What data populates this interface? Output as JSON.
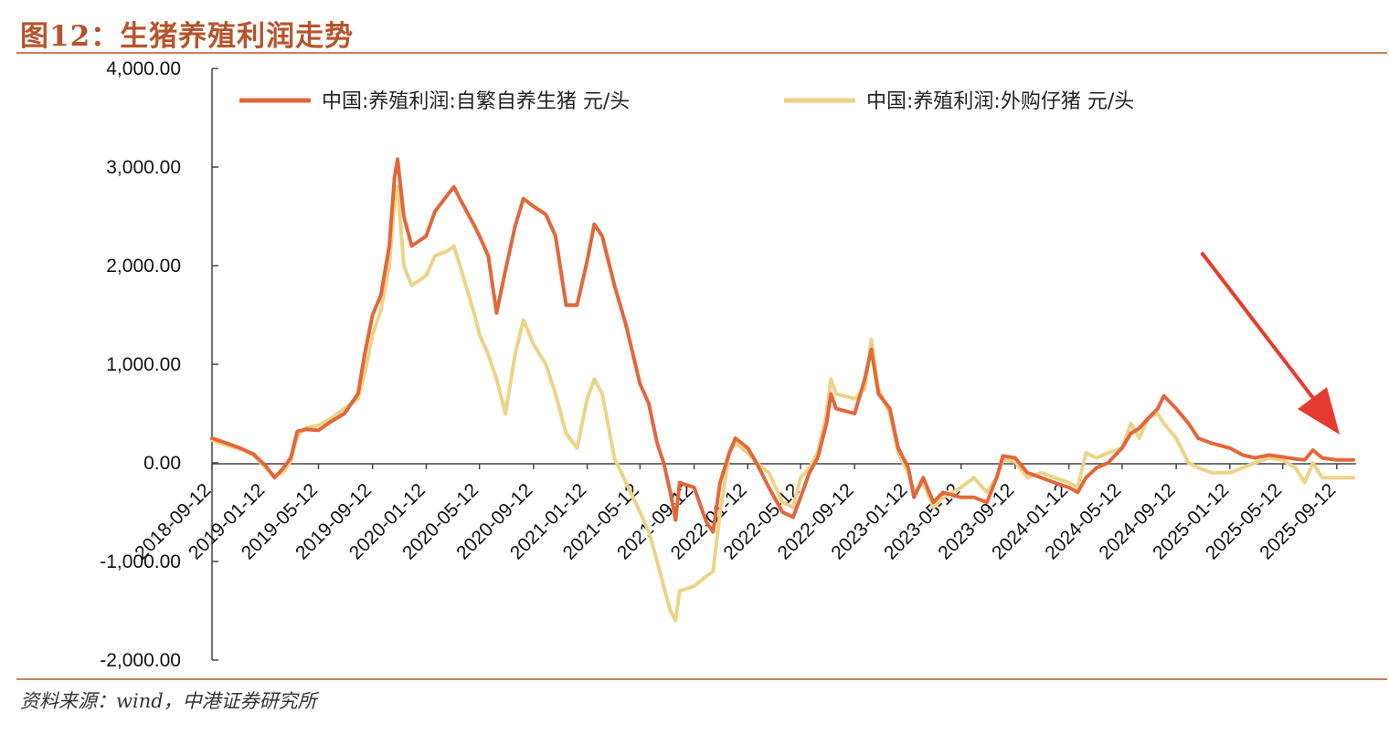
{
  "figure": {
    "title": "图12：生猪养殖利润走势",
    "source": "资料来源：wind，中港证券研究所"
  },
  "colors": {
    "self_bred": "#e2673a",
    "purchased": "#ecd387",
    "frame": "#c9805e",
    "title": "#b5542c",
    "axis": "#444444",
    "arrow": "#e63b30"
  },
  "annotation": {
    "type": "arrow",
    "color": "#e63b30",
    "target": "2025-09-12"
  },
  "chart_data": {
    "type": "line",
    "title": "",
    "xlabel": "",
    "ylabel": "",
    "ylim": [
      -2000,
      4000
    ],
    "xlim": [
      "2018-09-12",
      "2025-10-26"
    ],
    "grid": false,
    "legend_position": "top",
    "y_ticks": [
      "4,000.00",
      "3,000.00",
      "2,000.00",
      "1,000.00",
      "0.00",
      "-1,000.00",
      "-2,000.00"
    ],
    "y_tick_values": [
      4000,
      3000,
      2000,
      1000,
      0,
      -1000,
      -2000
    ],
    "x_ticks": [
      "2018-09-12",
      "2019-01-12",
      "2019-05-12",
      "2019-09-12",
      "2020-01-12",
      "2020-05-12",
      "2020-09-12",
      "2021-01-12",
      "2021-05-12",
      "2021-09-12",
      "2022-01-12",
      "2022-05-12",
      "2022-09-12",
      "2023-01-12",
      "2023-05-12",
      "2023-09-12",
      "2024-01-12",
      "2024-05-12",
      "2024-09-12",
      "2025-01-12",
      "2025-05-12",
      "2025-09-12"
    ],
    "series": [
      {
        "name": "中国:养殖利润:自繁自养生猪 元/头",
        "color": "#e2673a",
        "points": [
          [
            "2018-09-12",
            250
          ],
          [
            "2018-10-15",
            200
          ],
          [
            "2018-11-15",
            150
          ],
          [
            "2018-12-15",
            90
          ],
          [
            "2019-01-12",
            -30
          ],
          [
            "2019-02-01",
            -150
          ],
          [
            "2019-02-20",
            -60
          ],
          [
            "2019-03-10",
            50
          ],
          [
            "2019-03-25",
            320
          ],
          [
            "2019-04-15",
            340
          ],
          [
            "2019-05-12",
            330
          ],
          [
            "2019-06-10",
            420
          ],
          [
            "2019-07-10",
            500
          ],
          [
            "2019-08-10",
            700
          ],
          [
            "2019-08-25",
            1100
          ],
          [
            "2019-09-12",
            1500
          ],
          [
            "2019-10-01",
            1700
          ],
          [
            "2019-10-20",
            2200
          ],
          [
            "2019-11-01",
            2900
          ],
          [
            "2019-11-08",
            3080
          ],
          [
            "2019-11-22",
            2500
          ],
          [
            "2019-12-10",
            2200
          ],
          [
            "2020-01-12",
            2300
          ],
          [
            "2020-02-01",
            2550
          ],
          [
            "2020-03-01",
            2720
          ],
          [
            "2020-03-15",
            2800
          ],
          [
            "2020-04-01",
            2650
          ],
          [
            "2020-05-01",
            2400
          ],
          [
            "2020-05-12",
            2300
          ],
          [
            "2020-06-01",
            2100
          ],
          [
            "2020-06-20",
            1520
          ],
          [
            "2020-07-10",
            1950
          ],
          [
            "2020-08-01",
            2400
          ],
          [
            "2020-08-20",
            2680
          ],
          [
            "2020-09-12",
            2600
          ],
          [
            "2020-10-10",
            2520
          ],
          [
            "2020-11-01",
            2300
          ],
          [
            "2020-11-25",
            1600
          ],
          [
            "2020-12-20",
            1600
          ],
          [
            "2021-01-12",
            2050
          ],
          [
            "2021-01-28",
            2420
          ],
          [
            "2021-02-15",
            2300
          ],
          [
            "2021-03-15",
            1800
          ],
          [
            "2021-04-10",
            1400
          ],
          [
            "2021-05-12",
            800
          ],
          [
            "2021-06-01",
            600
          ],
          [
            "2021-06-20",
            200
          ],
          [
            "2021-07-05",
            0
          ],
          [
            "2021-07-20",
            -300
          ],
          [
            "2021-08-01",
            -580
          ],
          [
            "2021-08-10",
            -200
          ],
          [
            "2021-09-12",
            -250
          ],
          [
            "2021-10-10",
            -600
          ],
          [
            "2021-10-25",
            -700
          ],
          [
            "2021-11-10",
            -200
          ],
          [
            "2021-12-01",
            100
          ],
          [
            "2021-12-15",
            250
          ],
          [
            "2022-01-12",
            150
          ],
          [
            "2022-02-01",
            0
          ],
          [
            "2022-03-01",
            -250
          ],
          [
            "2022-04-01",
            -500
          ],
          [
            "2022-04-25",
            -550
          ],
          [
            "2022-05-12",
            -350
          ],
          [
            "2022-06-01",
            -100
          ],
          [
            "2022-06-20",
            50
          ],
          [
            "2022-07-10",
            400
          ],
          [
            "2022-07-20",
            700
          ],
          [
            "2022-08-01",
            550
          ],
          [
            "2022-09-12",
            500
          ],
          [
            "2022-10-05",
            850
          ],
          [
            "2022-10-20",
            1150
          ],
          [
            "2022-11-05",
            700
          ],
          [
            "2022-12-01",
            550
          ],
          [
            "2022-12-20",
            150
          ],
          [
            "2023-01-12",
            -50
          ],
          [
            "2023-01-25",
            -350
          ],
          [
            "2023-02-15",
            -150
          ],
          [
            "2023-03-10",
            -400
          ],
          [
            "2023-04-01",
            -300
          ],
          [
            "2023-05-12",
            -350
          ],
          [
            "2023-06-10",
            -350
          ],
          [
            "2023-07-10",
            -400
          ],
          [
            "2023-08-01",
            -150
          ],
          [
            "2023-08-15",
            70
          ],
          [
            "2023-09-12",
            50
          ],
          [
            "2023-10-10",
            -100
          ],
          [
            "2023-11-10",
            -150
          ],
          [
            "2023-12-10",
            -200
          ],
          [
            "2024-01-12",
            -250
          ],
          [
            "2024-02-01",
            -300
          ],
          [
            "2024-02-20",
            -150
          ],
          [
            "2024-03-15",
            -50
          ],
          [
            "2024-04-10",
            0
          ],
          [
            "2024-05-12",
            150
          ],
          [
            "2024-06-01",
            300
          ],
          [
            "2024-06-20",
            350
          ],
          [
            "2024-07-10",
            450
          ],
          [
            "2024-08-01",
            550
          ],
          [
            "2024-08-15",
            680
          ],
          [
            "2024-09-12",
            550
          ],
          [
            "2024-10-10",
            400
          ],
          [
            "2024-11-01",
            250
          ],
          [
            "2024-12-01",
            200
          ],
          [
            "2025-01-12",
            150
          ],
          [
            "2025-02-10",
            80
          ],
          [
            "2025-03-10",
            50
          ],
          [
            "2025-04-10",
            80
          ],
          [
            "2025-05-12",
            60
          ],
          [
            "2025-06-10",
            40
          ],
          [
            "2025-07-01",
            30
          ],
          [
            "2025-07-20",
            130
          ],
          [
            "2025-08-10",
            50
          ],
          [
            "2025-09-12",
            30
          ],
          [
            "2025-10-20",
            30
          ]
        ]
      },
      {
        "name": "中国:养殖利润:外购仔猪 元/头",
        "color": "#ecd387",
        "points": [
          [
            "2018-09-12",
            230
          ],
          [
            "2018-10-15",
            180
          ],
          [
            "2018-11-15",
            140
          ],
          [
            "2018-12-15",
            80
          ],
          [
            "2019-01-12",
            -50
          ],
          [
            "2019-02-01",
            -130
          ],
          [
            "2019-02-20",
            -100
          ],
          [
            "2019-03-10",
            20
          ],
          [
            "2019-03-25",
            280
          ],
          [
            "2019-04-15",
            360
          ],
          [
            "2019-05-12",
            380
          ],
          [
            "2019-06-10",
            450
          ],
          [
            "2019-07-10",
            550
          ],
          [
            "2019-08-10",
            650
          ],
          [
            "2019-08-25",
            900
          ],
          [
            "2019-09-12",
            1300
          ],
          [
            "2019-10-01",
            1550
          ],
          [
            "2019-10-20",
            2000
          ],
          [
            "2019-11-01",
            2650
          ],
          [
            "2019-11-08",
            2800
          ],
          [
            "2019-11-22",
            2000
          ],
          [
            "2019-12-10",
            1800
          ],
          [
            "2020-01-12",
            1900
          ],
          [
            "2020-02-01",
            2100
          ],
          [
            "2020-03-01",
            2150
          ],
          [
            "2020-03-15",
            2200
          ],
          [
            "2020-04-01",
            1950
          ],
          [
            "2020-05-01",
            1500
          ],
          [
            "2020-05-12",
            1300
          ],
          [
            "2020-06-01",
            1100
          ],
          [
            "2020-06-20",
            850
          ],
          [
            "2020-07-10",
            500
          ],
          [
            "2020-08-01",
            1100
          ],
          [
            "2020-08-20",
            1450
          ],
          [
            "2020-09-12",
            1200
          ],
          [
            "2020-10-10",
            1000
          ],
          [
            "2020-11-01",
            700
          ],
          [
            "2020-11-25",
            300
          ],
          [
            "2020-12-20",
            150
          ],
          [
            "2021-01-12",
            650
          ],
          [
            "2021-01-28",
            850
          ],
          [
            "2021-02-15",
            700
          ],
          [
            "2021-03-15",
            50
          ],
          [
            "2021-04-10",
            -200
          ],
          [
            "2021-05-12",
            -500
          ],
          [
            "2021-06-01",
            -700
          ],
          [
            "2021-06-20",
            -1000
          ],
          [
            "2021-07-05",
            -1250
          ],
          [
            "2021-07-20",
            -1500
          ],
          [
            "2021-08-01",
            -1600
          ],
          [
            "2021-08-10",
            -1300
          ],
          [
            "2021-09-12",
            -1250
          ],
          [
            "2021-10-10",
            -1150
          ],
          [
            "2021-10-25",
            -1100
          ],
          [
            "2021-11-10",
            -500
          ],
          [
            "2021-12-01",
            100
          ],
          [
            "2021-12-15",
            200
          ],
          [
            "2022-01-12",
            100
          ],
          [
            "2022-02-01",
            0
          ],
          [
            "2022-03-01",
            -100
          ],
          [
            "2022-04-01",
            -400
          ],
          [
            "2022-04-25",
            -450
          ],
          [
            "2022-05-12",
            -150
          ],
          [
            "2022-06-01",
            -50
          ],
          [
            "2022-06-20",
            100
          ],
          [
            "2022-07-10",
            500
          ],
          [
            "2022-07-20",
            850
          ],
          [
            "2022-08-01",
            700
          ],
          [
            "2022-09-12",
            650
          ],
          [
            "2022-10-05",
            750
          ],
          [
            "2022-10-20",
            1250
          ],
          [
            "2022-11-05",
            750
          ],
          [
            "2022-12-01",
            500
          ],
          [
            "2022-12-20",
            100
          ],
          [
            "2023-01-12",
            -100
          ],
          [
            "2023-01-25",
            -300
          ],
          [
            "2023-02-15",
            -200
          ],
          [
            "2023-03-10",
            -450
          ],
          [
            "2023-04-01",
            -350
          ],
          [
            "2023-05-12",
            -250
          ],
          [
            "2023-06-10",
            -150
          ],
          [
            "2023-07-10",
            -300
          ],
          [
            "2023-08-01",
            -150
          ],
          [
            "2023-08-15",
            30
          ],
          [
            "2023-09-12",
            10
          ],
          [
            "2023-10-10",
            -150
          ],
          [
            "2023-11-10",
            -100
          ],
          [
            "2023-12-10",
            -150
          ],
          [
            "2024-01-12",
            -200
          ],
          [
            "2024-02-01",
            -250
          ],
          [
            "2024-02-20",
            100
          ],
          [
            "2024-03-15",
            50
          ],
          [
            "2024-04-10",
            100
          ],
          [
            "2024-05-12",
            150
          ],
          [
            "2024-06-01",
            400
          ],
          [
            "2024-06-20",
            250
          ],
          [
            "2024-07-10",
            450
          ],
          [
            "2024-08-01",
            500
          ],
          [
            "2024-08-15",
            400
          ],
          [
            "2024-09-12",
            250
          ],
          [
            "2024-10-10",
            0
          ],
          [
            "2024-11-01",
            -50
          ],
          [
            "2024-12-01",
            -100
          ],
          [
            "2025-01-12",
            -100
          ],
          [
            "2025-02-10",
            -50
          ],
          [
            "2025-03-10",
            0
          ],
          [
            "2025-04-10",
            50
          ],
          [
            "2025-05-12",
            30
          ],
          [
            "2025-06-10",
            -50
          ],
          [
            "2025-07-01",
            -200
          ],
          [
            "2025-07-20",
            0
          ],
          [
            "2025-08-10",
            -150
          ],
          [
            "2025-09-12",
            -150
          ],
          [
            "2025-10-20",
            -150
          ]
        ]
      }
    ]
  }
}
